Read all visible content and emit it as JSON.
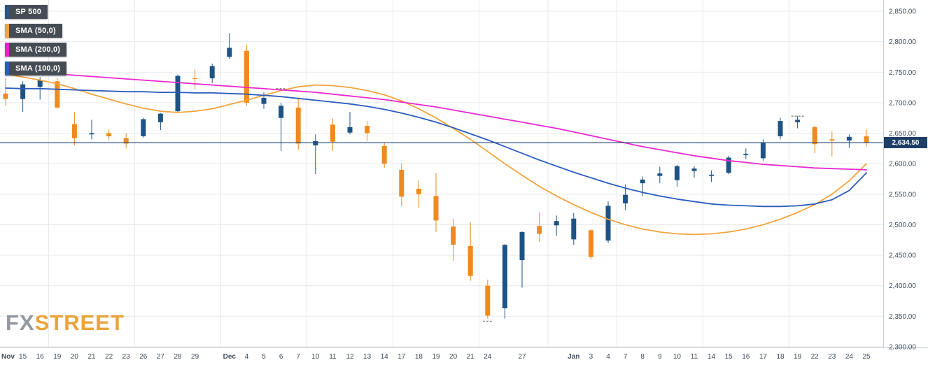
{
  "header": {
    "legend": [
      {
        "label": "SP 500",
        "color": "#2a5784"
      },
      {
        "label": "SMA (50,0)",
        "color": "#f2a33c"
      },
      {
        "label": "SMA (200,0)",
        "color": "#e823cd"
      },
      {
        "label": "SMA (100,0)",
        "color": "#2b5cbf"
      }
    ]
  },
  "watermark": {
    "part1": "FX",
    "part2": "STREET"
  },
  "price_label": {
    "text": "2,634.50"
  },
  "chart_data": {
    "type": "candlestick",
    "title": "SP 500 daily candlesticks with SMA(50), SMA(100), SMA(200) overlays",
    "legend_entries": [
      "SP 500",
      "SMA (50,0)",
      "SMA (200,0)",
      "SMA (100,0)"
    ],
    "last_price": 2634.5,
    "y_axis": {
      "min": 2300,
      "max": 2850,
      "step": 50,
      "labels": [
        "2,850.00",
        "2,800.00",
        "2,750.00",
        "2,700.00",
        "2,650.00",
        "2,600.00",
        "2,550.00",
        "2,500.00",
        "2,450.00",
        "2,400.00",
        "2,350.00",
        "2,300.00"
      ]
    },
    "x_labels": [
      "Nov",
      "15",
      "16",
      "19",
      "20",
      "21",
      "22",
      "23",
      "26",
      "27",
      "28",
      "29",
      "",
      "Dec",
      "4",
      "5",
      "6",
      "7",
      "10",
      "11",
      "12",
      "13",
      "14",
      "17",
      "18",
      "19",
      "20",
      "21",
      "24",
      "",
      "27",
      "",
      "",
      "Jan",
      "3",
      "4",
      "7",
      "8",
      "9",
      "10",
      "11",
      "14",
      "15",
      "16",
      "17",
      "18",
      "19",
      "22",
      "23",
      "24",
      "25"
    ],
    "dates": [
      "Nov 14",
      "Nov 15",
      "Nov 16",
      "Nov 19",
      "Nov 20",
      "Nov 21",
      "Nov 22",
      "Nov 23",
      "Nov 26",
      "Nov 27",
      "Nov 28",
      "Nov 29",
      "Nov 30",
      "Dec 3",
      "Dec 4",
      "Dec 5",
      "Dec 6",
      "Dec 7",
      "Dec 10",
      "Dec 11",
      "Dec 12",
      "Dec 13",
      "Dec 14",
      "Dec 17",
      "Dec 18",
      "Dec 19",
      "Dec 20",
      "Dec 21",
      "Dec 24",
      "Dec 26",
      "Dec 27",
      "Dec 28",
      "Dec 31",
      "Jan 2",
      "Jan 3",
      "Jan 4",
      "Jan 7",
      "Jan 8",
      "Jan 9",
      "Jan 10",
      "Jan 11",
      "Jan 14",
      "Jan 15",
      "Jan 16",
      "Jan 17",
      "Jan 18",
      "Jan 19",
      "Jan 22",
      "Jan 23",
      "Jan 24",
      "Jan 25"
    ],
    "ohlc_fields": [
      "open",
      "high",
      "low",
      "close"
    ],
    "ohlc": [
      [
        2715,
        2740,
        2695,
        2706
      ],
      [
        2706,
        2735,
        2685,
        2730
      ],
      [
        2726,
        2742,
        2705,
        2737
      ],
      [
        2735,
        2740,
        2690,
        2692
      ],
      [
        2665,
        2685,
        2630,
        2642
      ],
      [
        2648,
        2672,
        2640,
        2650
      ],
      [
        2650,
        2656,
        2638,
        2645
      ],
      [
        2642,
        2650,
        2625,
        2633
      ],
      [
        2645,
        2675,
        2643,
        2673
      ],
      [
        2668,
        2683,
        2655,
        2682
      ],
      [
        2686,
        2746,
        2684,
        2744
      ],
      [
        2740,
        2755,
        2722,
        2739
      ],
      [
        2740,
        2764,
        2732,
        2760
      ],
      [
        2775,
        2814,
        2772,
        2790
      ],
      [
        2785,
        2795,
        2695,
        2700
      ],
      [
        2698,
        2717,
        2690,
        2708
      ],
      [
        2675,
        2700,
        2621,
        2695
      ],
      [
        2692,
        2708,
        2623,
        2633
      ],
      [
        2630,
        2648,
        2583,
        2637
      ],
      [
        2664,
        2674,
        2621,
        2636
      ],
      [
        2651,
        2685,
        2648,
        2660
      ],
      [
        2662,
        2670,
        2637,
        2650
      ],
      [
        2629,
        2635,
        2593,
        2600
      ],
      [
        2590,
        2601,
        2530,
        2546
      ],
      [
        2559,
        2573,
        2528,
        2550
      ],
      [
        2547,
        2585,
        2488,
        2507
      ],
      [
        2497,
        2510,
        2441,
        2467
      ],
      [
        2465,
        2504,
        2408,
        2416
      ],
      [
        2400,
        2410,
        2346,
        2351
      ],
      [
        2363,
        2468,
        2346,
        2467
      ],
      [
        2442,
        2489,
        2397,
        2488
      ],
      [
        2498,
        2520,
        2472,
        2485
      ],
      [
        2499,
        2515,
        2482,
        2506
      ],
      [
        2476,
        2519,
        2467,
        2510
      ],
      [
        2491,
        2493,
        2443,
        2447
      ],
      [
        2474,
        2538,
        2470,
        2531
      ],
      [
        2535,
        2566,
        2524,
        2549
      ],
      [
        2568,
        2579,
        2547,
        2574
      ],
      [
        2580,
        2595,
        2568,
        2584
      ],
      [
        2573,
        2598,
        2562,
        2596
      ],
      [
        2588,
        2596,
        2577,
        2592
      ],
      [
        2580,
        2589,
        2570,
        2582
      ],
      [
        2585,
        2613,
        2583,
        2610
      ],
      [
        2614,
        2625,
        2608,
        2616
      ],
      [
        2609,
        2640,
        2605,
        2635
      ],
      [
        2645,
        2675,
        2640,
        2670
      ],
      [
        2668,
        2678,
        2658,
        2672
      ],
      [
        2660,
        2662,
        2617,
        2632
      ],
      [
        2640,
        2653,
        2612,
        2638
      ],
      [
        2638,
        2648,
        2626,
        2644
      ],
      [
        2645,
        2656,
        2628,
        2634.5
      ]
    ],
    "sma_50": [
      2747,
      2742,
      2737,
      2731,
      2723,
      2714,
      2706,
      2698,
      2691,
      2686,
      2684,
      2686,
      2690,
      2697,
      2704,
      2712,
      2720,
      2726,
      2729,
      2728,
      2725,
      2720,
      2713,
      2703,
      2690,
      2675,
      2658,
      2640,
      2620,
      2600,
      2581,
      2563,
      2547,
      2533,
      2520,
      2509,
      2500,
      2493,
      2488,
      2485,
      2484,
      2485,
      2488,
      2493,
      2500,
      2509,
      2520,
      2533,
      2550,
      2572,
      2600
    ],
    "sma_200": [
      2753,
      2751,
      2749,
      2747,
      2745,
      2743,
      2741,
      2739,
      2737,
      2735,
      2733,
      2731,
      2729,
      2727,
      2725,
      2723,
      2721,
      2719,
      2717,
      2714,
      2711,
      2708,
      2705,
      2701,
      2697,
      2693,
      2688,
      2683,
      2678,
      2673,
      2668,
      2663,
      2658,
      2652,
      2646,
      2640,
      2634,
      2628,
      2623,
      2618,
      2613,
      2609,
      2605,
      2602,
      2599,
      2597,
      2595,
      2593,
      2592,
      2591,
      2590
    ],
    "sma_100": [
      2724,
      2723,
      2723,
      2722,
      2721,
      2720,
      2719,
      2718,
      2718,
      2717,
      2717,
      2716,
      2716,
      2715,
      2714,
      2712,
      2710,
      2707,
      2704,
      2701,
      2698,
      2694,
      2689,
      2683,
      2676,
      2668,
      2659,
      2649,
      2639,
      2628,
      2617,
      2606,
      2596,
      2586,
      2577,
      2568,
      2560,
      2553,
      2547,
      2542,
      2538,
      2534,
      2532,
      2531,
      2530,
      2530,
      2531,
      2534,
      2541,
      2556,
      2585
    ],
    "week_grid_indices": [
      3,
      8,
      13,
      18,
      23,
      28,
      32,
      36,
      41,
      46
    ],
    "markers": [
      {
        "i": 16,
        "price": 2723,
        "w": 14
      },
      {
        "i": 28,
        "price": 2342,
        "w": 14
      },
      {
        "i": 46,
        "price": 2678,
        "w": 18
      }
    ],
    "colors": {
      "up": "#1e5385",
      "down": "#ee8a1f",
      "sma50": "#f2a43e",
      "sma200": "#ea28d0",
      "sma100": "#2b5cbf",
      "grid": "#e9e9e9",
      "axis_border": "#c9ced4",
      "axis_text": "#3e4a57",
      "price_line": "#24477a",
      "price_badge_bg": "#1d3f66",
      "marker": "#555555"
    },
    "legend_position": "top-left",
    "grid": true
  }
}
